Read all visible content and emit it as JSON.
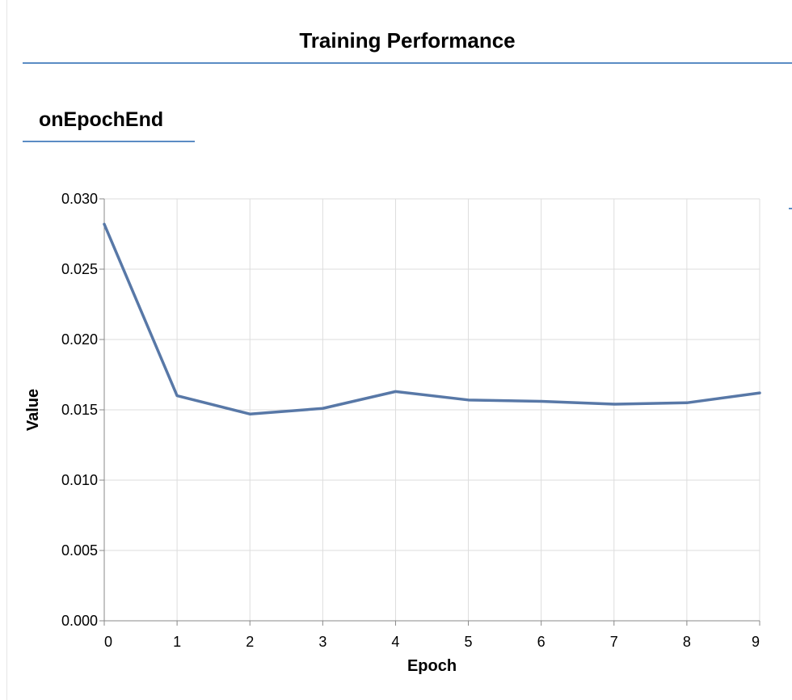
{
  "panel": {
    "title": "Training Performance"
  },
  "tabs": [
    {
      "label": "onEpochEnd",
      "active": true
    }
  ],
  "colors": {
    "accent": "#5b8cc4",
    "series_line": "#5878a7",
    "grid": "#dddddd",
    "axis": "#888888"
  },
  "chart_data": {
    "type": "line",
    "title": "",
    "xlabel": "Epoch",
    "ylabel": "Value",
    "x": [
      0,
      1,
      2,
      3,
      4,
      5,
      6,
      7,
      8,
      9
    ],
    "xlim": [
      0,
      9
    ],
    "ylim": [
      0,
      0.03
    ],
    "xticks": [
      "0",
      "1",
      "2",
      "3",
      "4",
      "5",
      "6",
      "7",
      "8",
      "9"
    ],
    "yticks": [
      "0.000",
      "0.005",
      "0.010",
      "0.015",
      "0.020",
      "0.025",
      "0.030"
    ],
    "grid": true,
    "series": [
      {
        "values": [
          0.0282,
          0.016,
          0.0147,
          0.0151,
          0.0163,
          0.0157,
          0.0156,
          0.0154,
          0.0155,
          0.0162
        ]
      }
    ]
  }
}
